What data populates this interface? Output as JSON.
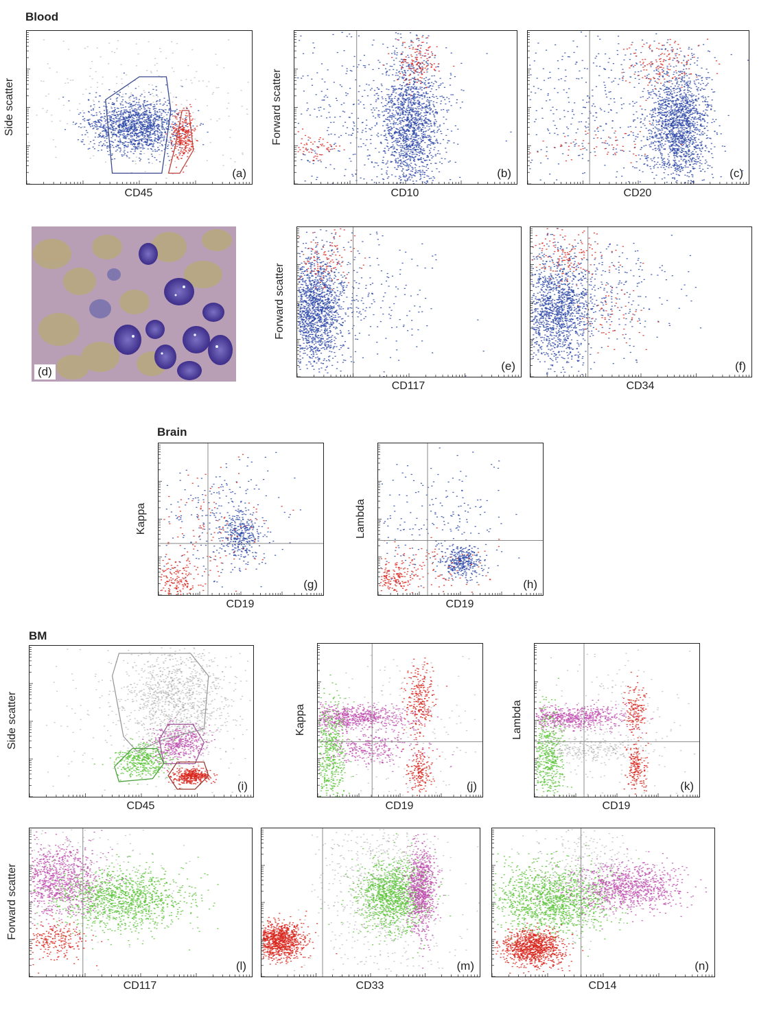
{
  "sections": {
    "blood": "Blood",
    "brain": "Brain",
    "bm": "BM"
  },
  "colors": {
    "blue": "#2f4aa8",
    "red": "#d8261c",
    "magenta": "#c04fb0",
    "green": "#5cc43a",
    "gray": "#8a8a8a",
    "gate_blue": "#3a4a8f",
    "gate_red": "#c0413a",
    "gate_gray": "#999999",
    "gate_magenta": "#a05a99",
    "gate_green": "#4aa23a",
    "gate_red2": "#9a3a33"
  },
  "photo": {
    "label": "(d)",
    "description_icon": "micrograph-image"
  },
  "chart_data": [
    {
      "id": "a",
      "type": "scatter",
      "panel_label": "(a)",
      "xlabel": "CD45",
      "ylabel": "Side scatter",
      "series": [
        {
          "color": "gray",
          "cx": 0.5,
          "cy": 0.45,
          "sx": 0.28,
          "sy": 0.28,
          "n": 260
        },
        {
          "color": "blue",
          "cx": 0.48,
          "cy": 0.62,
          "sx": 0.1,
          "sy": 0.09,
          "n": 1400
        },
        {
          "color": "red",
          "cx": 0.69,
          "cy": 0.69,
          "sx": 0.025,
          "sy": 0.08,
          "n": 260
        }
      ],
      "gates": [
        {
          "color": "gate_blue",
          "points": [
            [
              0.35,
              0.45
            ],
            [
              0.5,
              0.3
            ],
            [
              0.62,
              0.3
            ],
            [
              0.64,
              0.52
            ],
            [
              0.6,
              0.93
            ],
            [
              0.38,
              0.93
            ]
          ]
        },
        {
          "color": "gate_red",
          "points": [
            [
              0.69,
              0.52
            ],
            [
              0.72,
              0.52
            ],
            [
              0.74,
              0.78
            ],
            [
              0.68,
              0.93
            ],
            [
              0.63,
              0.93
            ],
            [
              0.66,
              0.75
            ]
          ]
        }
      ]
    },
    {
      "id": "b",
      "type": "scatter",
      "panel_label": "(b)",
      "xlabel": "CD10",
      "ylabel": "Forward scatter",
      "quadrant": {
        "x": 0.28
      },
      "series": [
        {
          "color": "blue",
          "cx": 0.52,
          "cy": 0.6,
          "sx": 0.07,
          "sy": 0.22,
          "n": 1600
        },
        {
          "color": "blue",
          "cx": 0.3,
          "cy": 0.55,
          "sx": 0.22,
          "sy": 0.3,
          "n": 420
        },
        {
          "color": "red",
          "cx": 0.55,
          "cy": 0.2,
          "sx": 0.05,
          "sy": 0.08,
          "n": 140
        },
        {
          "color": "red",
          "cx": 0.1,
          "cy": 0.75,
          "sx": 0.05,
          "sy": 0.05,
          "n": 60
        }
      ]
    },
    {
      "id": "c",
      "type": "scatter",
      "panel_label": "(c)",
      "xlabel": "CD20",
      "ylabel": "",
      "quadrant": {
        "x": 0.28
      },
      "series": [
        {
          "color": "blue",
          "cx": 0.68,
          "cy": 0.62,
          "sx": 0.07,
          "sy": 0.18,
          "n": 1600
        },
        {
          "color": "blue",
          "cx": 0.38,
          "cy": 0.45,
          "sx": 0.25,
          "sy": 0.3,
          "n": 520
        },
        {
          "color": "red",
          "cx": 0.6,
          "cy": 0.22,
          "sx": 0.08,
          "sy": 0.08,
          "n": 140
        },
        {
          "color": "red",
          "cx": 0.3,
          "cy": 0.75,
          "sx": 0.15,
          "sy": 0.06,
          "n": 60
        }
      ]
    },
    {
      "id": "e",
      "type": "scatter",
      "panel_label": "(e)",
      "xlabel": "CD117",
      "ylabel": "Forward scatter",
      "quadrant": {
        "x": 0.25
      },
      "series": [
        {
          "color": "blue",
          "cx": 0.08,
          "cy": 0.55,
          "sx": 0.06,
          "sy": 0.18,
          "n": 1500
        },
        {
          "color": "blue",
          "cx": 0.25,
          "cy": 0.45,
          "sx": 0.18,
          "sy": 0.22,
          "n": 280
        },
        {
          "color": "red",
          "cx": 0.12,
          "cy": 0.2,
          "sx": 0.08,
          "sy": 0.1,
          "n": 120
        }
      ]
    },
    {
      "id": "f",
      "type": "scatter",
      "panel_label": "(f)",
      "xlabel": "CD34",
      "ylabel": "",
      "quadrant": {
        "x": 0.26
      },
      "series": [
        {
          "color": "blue",
          "cx": 0.12,
          "cy": 0.55,
          "sx": 0.08,
          "sy": 0.18,
          "n": 1400
        },
        {
          "color": "blue",
          "cx": 0.35,
          "cy": 0.45,
          "sx": 0.15,
          "sy": 0.2,
          "n": 280
        },
        {
          "color": "red",
          "cx": 0.15,
          "cy": 0.18,
          "sx": 0.1,
          "sy": 0.1,
          "n": 160
        },
        {
          "color": "red",
          "cx": 0.38,
          "cy": 0.6,
          "sx": 0.08,
          "sy": 0.12,
          "n": 60
        }
      ]
    },
    {
      "id": "g",
      "type": "scatter",
      "panel_label": "(g)",
      "xlabel": "CD19",
      "ylabel": "Kappa",
      "quadrant": {
        "x": 0.3,
        "y": 0.66
      },
      "series": [
        {
          "color": "blue",
          "cx": 0.5,
          "cy": 0.6,
          "sx": 0.06,
          "sy": 0.08,
          "n": 340
        },
        {
          "color": "blue",
          "cx": 0.35,
          "cy": 0.5,
          "sx": 0.2,
          "sy": 0.2,
          "n": 220
        },
        {
          "color": "red",
          "cx": 0.1,
          "cy": 0.9,
          "sx": 0.06,
          "sy": 0.06,
          "n": 160
        },
        {
          "color": "red",
          "cx": 0.3,
          "cy": 0.6,
          "sx": 0.2,
          "sy": 0.22,
          "n": 140
        }
      ]
    },
    {
      "id": "h",
      "type": "scatter",
      "panel_label": "(h)",
      "xlabel": "CD19",
      "ylabel": "Lambda",
      "quadrant": {
        "x": 0.3,
        "y": 0.64
      },
      "series": [
        {
          "color": "blue",
          "cx": 0.5,
          "cy": 0.78,
          "sx": 0.06,
          "sy": 0.05,
          "n": 340
        },
        {
          "color": "blue",
          "cx": 0.35,
          "cy": 0.55,
          "sx": 0.22,
          "sy": 0.2,
          "n": 220
        },
        {
          "color": "red",
          "cx": 0.1,
          "cy": 0.88,
          "sx": 0.07,
          "sy": 0.05,
          "n": 160
        },
        {
          "color": "red",
          "cx": 0.35,
          "cy": 0.8,
          "sx": 0.18,
          "sy": 0.1,
          "n": 100
        }
      ]
    },
    {
      "id": "i",
      "type": "scatter",
      "panel_label": "(i)",
      "xlabel": "CD45",
      "ylabel": "Side scatter",
      "series": [
        {
          "color": "gray",
          "cx": 0.65,
          "cy": 0.35,
          "sx": 0.12,
          "sy": 0.2,
          "n": 1200
        },
        {
          "color": "gray",
          "cx": 0.55,
          "cy": 0.5,
          "sx": 0.3,
          "sy": 0.3,
          "n": 200
        },
        {
          "color": "magenta",
          "cx": 0.67,
          "cy": 0.64,
          "sx": 0.06,
          "sy": 0.06,
          "n": 400
        },
        {
          "color": "green",
          "cx": 0.5,
          "cy": 0.76,
          "sx": 0.06,
          "sy": 0.05,
          "n": 400
        },
        {
          "color": "red",
          "cx": 0.72,
          "cy": 0.86,
          "sx": 0.04,
          "sy": 0.025,
          "n": 400
        }
      ],
      "gates": [
        {
          "color": "gate_gray",
          "points": [
            [
              0.37,
              0.2
            ],
            [
              0.4,
              0.05
            ],
            [
              0.72,
              0.05
            ],
            [
              0.8,
              0.2
            ],
            [
              0.78,
              0.55
            ],
            [
              0.6,
              0.62
            ],
            [
              0.48,
              0.7
            ],
            [
              0.42,
              0.6
            ]
          ]
        },
        {
          "color": "gate_magenta",
          "points": [
            [
              0.58,
              0.62
            ],
            [
              0.62,
              0.52
            ],
            [
              0.73,
              0.52
            ],
            [
              0.78,
              0.64
            ],
            [
              0.74,
              0.78
            ],
            [
              0.6,
              0.78
            ]
          ]
        },
        {
          "color": "gate_green",
          "points": [
            [
              0.38,
              0.8
            ],
            [
              0.46,
              0.68
            ],
            [
              0.57,
              0.68
            ],
            [
              0.6,
              0.78
            ],
            [
              0.55,
              0.88
            ],
            [
              0.4,
              0.9
            ]
          ]
        },
        {
          "color": "gate_red2",
          "points": [
            [
              0.62,
              0.86
            ],
            [
              0.66,
              0.77
            ],
            [
              0.78,
              0.77
            ],
            [
              0.8,
              0.86
            ],
            [
              0.74,
              0.95
            ],
            [
              0.66,
              0.95
            ]
          ]
        }
      ]
    },
    {
      "id": "j",
      "type": "scatter",
      "panel_label": "(j)",
      "xlabel": "CD19",
      "ylabel": "Kappa",
      "quadrant": {
        "x": 0.33,
        "y": 0.64
      },
      "series": [
        {
          "color": "gray",
          "cx": 0.45,
          "cy": 0.6,
          "sx": 0.3,
          "sy": 0.3,
          "n": 260
        },
        {
          "color": "magenta",
          "cx": 0.22,
          "cy": 0.48,
          "sx": 0.18,
          "sy": 0.04,
          "n": 700
        },
        {
          "color": "magenta",
          "cx": 0.3,
          "cy": 0.68,
          "sx": 0.15,
          "sy": 0.05,
          "n": 300
        },
        {
          "color": "green",
          "cx": 0.07,
          "cy": 0.72,
          "sx": 0.05,
          "sy": 0.18,
          "n": 500
        },
        {
          "color": "red",
          "cx": 0.61,
          "cy": 0.35,
          "sx": 0.04,
          "sy": 0.12,
          "n": 260
        },
        {
          "color": "red",
          "cx": 0.61,
          "cy": 0.83,
          "sx": 0.04,
          "sy": 0.08,
          "n": 180
        }
      ]
    },
    {
      "id": "k",
      "type": "scatter",
      "panel_label": "(k)",
      "xlabel": "CD19",
      "ylabel": "Lambda",
      "quadrant": {
        "x": 0.3,
        "y": 0.64
      },
      "series": [
        {
          "color": "gray",
          "cx": 0.45,
          "cy": 0.6,
          "sx": 0.3,
          "sy": 0.3,
          "n": 220
        },
        {
          "color": "magenta",
          "cx": 0.2,
          "cy": 0.48,
          "sx": 0.18,
          "sy": 0.04,
          "n": 700
        },
        {
          "color": "gray",
          "cx": 0.35,
          "cy": 0.68,
          "sx": 0.15,
          "sy": 0.04,
          "n": 260
        },
        {
          "color": "green",
          "cx": 0.07,
          "cy": 0.72,
          "sx": 0.05,
          "sy": 0.15,
          "n": 500
        },
        {
          "color": "red",
          "cx": 0.61,
          "cy": 0.42,
          "sx": 0.03,
          "sy": 0.09,
          "n": 160
        },
        {
          "color": "red",
          "cx": 0.61,
          "cy": 0.8,
          "sx": 0.03,
          "sy": 0.08,
          "n": 180
        }
      ]
    },
    {
      "id": "l",
      "type": "scatter",
      "panel_label": "(l)",
      "xlabel": "CD117",
      "ylabel": "Forward scatter",
      "quadrant": {
        "x": 0.24
      },
      "series": [
        {
          "color": "gray",
          "cx": 0.2,
          "cy": 0.3,
          "sx": 0.2,
          "sy": 0.2,
          "n": 260
        },
        {
          "color": "magenta",
          "cx": 0.12,
          "cy": 0.35,
          "sx": 0.1,
          "sy": 0.12,
          "n": 1000
        },
        {
          "color": "green",
          "cx": 0.42,
          "cy": 0.48,
          "sx": 0.15,
          "sy": 0.1,
          "n": 1200
        },
        {
          "color": "red",
          "cx": 0.1,
          "cy": 0.75,
          "sx": 0.07,
          "sy": 0.07,
          "n": 250
        }
      ]
    },
    {
      "id": "m",
      "type": "scatter",
      "panel_label": "(m)",
      "xlabel": "CD33",
      "ylabel": "",
      "quadrant": {
        "x": 0.28
      },
      "series": [
        {
          "color": "gray",
          "cx": 0.55,
          "cy": 0.4,
          "sx": 0.15,
          "sy": 0.3,
          "n": 800
        },
        {
          "color": "green",
          "cx": 0.6,
          "cy": 0.45,
          "sx": 0.08,
          "sy": 0.12,
          "n": 1200
        },
        {
          "color": "magenta",
          "cx": 0.73,
          "cy": 0.4,
          "sx": 0.03,
          "sy": 0.15,
          "n": 800
        },
        {
          "color": "red",
          "cx": 0.08,
          "cy": 0.75,
          "sx": 0.06,
          "sy": 0.06,
          "n": 1000
        }
      ]
    },
    {
      "id": "n",
      "type": "scatter",
      "panel_label": "(n)",
      "xlabel": "CD14",
      "ylabel": "",
      "quadrant": {
        "x": 0.4
      },
      "series": [
        {
          "color": "gray",
          "cx": 0.4,
          "cy": 0.3,
          "sx": 0.12,
          "sy": 0.2,
          "n": 400
        },
        {
          "color": "green",
          "cx": 0.26,
          "cy": 0.48,
          "sx": 0.14,
          "sy": 0.12,
          "n": 1400
        },
        {
          "color": "magenta",
          "cx": 0.62,
          "cy": 0.4,
          "sx": 0.12,
          "sy": 0.08,
          "n": 900
        },
        {
          "color": "red",
          "cx": 0.18,
          "cy": 0.8,
          "sx": 0.07,
          "sy": 0.06,
          "n": 1000
        }
      ]
    }
  ]
}
